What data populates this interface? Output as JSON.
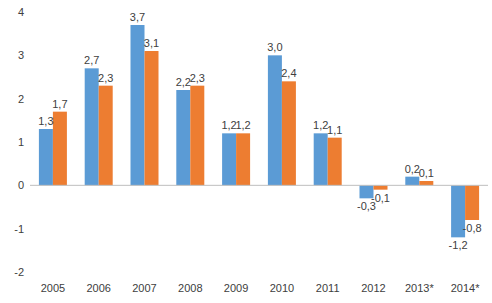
{
  "chart_data": {
    "type": "bar",
    "categories": [
      "2005",
      "2006",
      "2007",
      "2008",
      "2009",
      "2010",
      "2011",
      "2012",
      "2013*",
      "2014*"
    ],
    "series": [
      {
        "color": "#5b9bd5",
        "values": [
          1.3,
          2.7,
          3.7,
          2.2,
          1.2,
          3.0,
          1.2,
          -0.3,
          0.2,
          -1.2
        ],
        "value_labels": [
          "1,3",
          "2,7",
          "3,7",
          "2,2",
          "1,2",
          "3,0",
          "1,2",
          "-0,3",
          "0,2",
          "-1,2"
        ]
      },
      {
        "color": "#ed7d31",
        "values": [
          1.7,
          2.3,
          3.1,
          2.3,
          1.2,
          2.4,
          1.1,
          -0.1,
          0.1,
          -0.8
        ],
        "value_labels": [
          "1,7",
          "2,3",
          "3,1",
          "2,3",
          "1,2",
          "2,4",
          "1,1",
          "-0,1",
          "0,1",
          "-0,8"
        ]
      }
    ],
    "ylim": [
      -2,
      4
    ],
    "yticks": [
      -2,
      -1,
      0,
      1,
      2,
      3,
      4
    ],
    "grid": false,
    "data_labels": true
  }
}
